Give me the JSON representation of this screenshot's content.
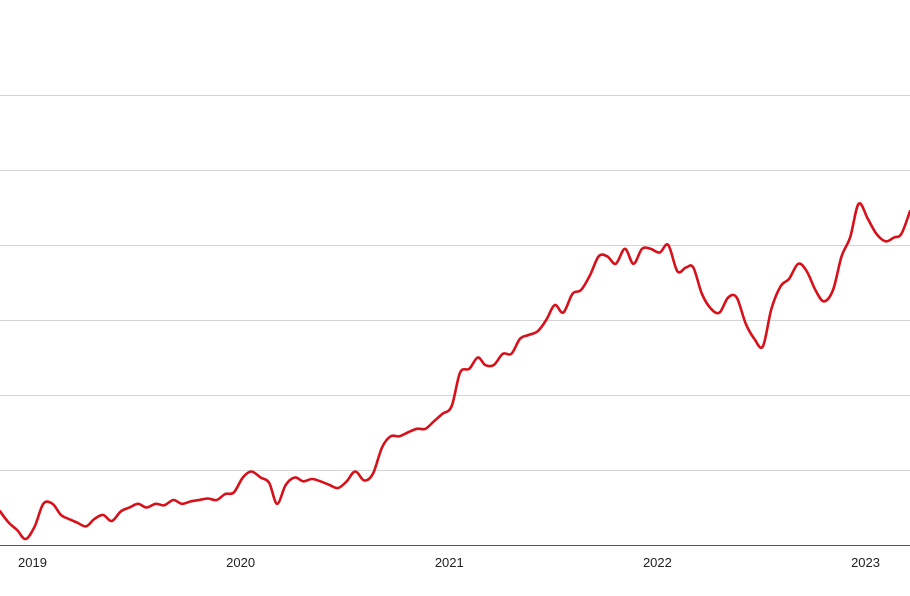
{
  "colors": {
    "line": "#d7101a",
    "grid": "#d4d4d4",
    "baseline": "#555555",
    "text": "#222222",
    "background": "#ffffff"
  },
  "chart_data": {
    "type": "line",
    "title": "",
    "xlabel": "",
    "ylabel": "",
    "x_tick_labels": [
      "2019",
      "2020",
      "2021",
      "2022",
      "2023"
    ],
    "x_ticks": [
      "2019-01-01",
      "2020-01-01",
      "2021-01-01",
      "2022-01-01",
      "2023-01-01"
    ],
    "xlim": [
      "2018-11-05",
      "2023-03-20"
    ],
    "ylim": [
      0,
      7
    ],
    "y_gridlines": [
      1,
      2,
      3,
      4,
      5,
      6
    ],
    "y_tick_labels_visible": false,
    "grid": "horizontal",
    "legend": "none",
    "series": [
      {
        "x": [
          "2018-11-05",
          "2018-11-20",
          "2018-12-05",
          "2018-12-20",
          "2019-01-05",
          "2019-01-20",
          "2019-02-05",
          "2019-02-20",
          "2019-03-05",
          "2019-03-20",
          "2019-04-05",
          "2019-04-20",
          "2019-05-05",
          "2019-05-20",
          "2019-06-05",
          "2019-06-20",
          "2019-07-05",
          "2019-07-20",
          "2019-08-05",
          "2019-08-20",
          "2019-09-05",
          "2019-09-20",
          "2019-10-05",
          "2019-10-20",
          "2019-11-05",
          "2019-11-20",
          "2019-12-05",
          "2019-12-20",
          "2020-01-05",
          "2020-01-20",
          "2020-02-05",
          "2020-02-20",
          "2020-03-05",
          "2020-03-20",
          "2020-04-05",
          "2020-04-20",
          "2020-05-05",
          "2020-05-20",
          "2020-06-05",
          "2020-06-20",
          "2020-07-05",
          "2020-07-20",
          "2020-08-05",
          "2020-08-20",
          "2020-09-05",
          "2020-09-20",
          "2020-10-05",
          "2020-10-20",
          "2020-11-05",
          "2020-11-20",
          "2020-12-05",
          "2020-12-20",
          "2021-01-05",
          "2021-01-20",
          "2021-02-05",
          "2021-02-20",
          "2021-03-05",
          "2021-03-20",
          "2021-04-05",
          "2021-04-20",
          "2021-05-05",
          "2021-05-20",
          "2021-06-05",
          "2021-06-20",
          "2021-07-05",
          "2021-07-20",
          "2021-08-05",
          "2021-08-20",
          "2021-09-05",
          "2021-09-20",
          "2021-10-05",
          "2021-10-20",
          "2021-11-05",
          "2021-11-20",
          "2021-12-05",
          "2021-12-20",
          "2022-01-05",
          "2022-01-20",
          "2022-02-05",
          "2022-02-20",
          "2022-03-05",
          "2022-03-20",
          "2022-04-05",
          "2022-04-20",
          "2022-05-05",
          "2022-05-20",
          "2022-06-05",
          "2022-06-20",
          "2022-07-05",
          "2022-07-20",
          "2022-08-05",
          "2022-08-20",
          "2022-09-05",
          "2022-09-20",
          "2022-10-05",
          "2022-10-20",
          "2022-11-05",
          "2022-11-20",
          "2022-12-05",
          "2022-12-20",
          "2023-01-05",
          "2023-01-20",
          "2023-02-05",
          "2023-02-20",
          "2023-03-05",
          "2023-03-20"
        ],
        "y": [
          0.45,
          0.3,
          0.2,
          0.08,
          0.25,
          0.55,
          0.55,
          0.4,
          0.35,
          0.3,
          0.25,
          0.35,
          0.4,
          0.32,
          0.45,
          0.5,
          0.55,
          0.5,
          0.55,
          0.53,
          0.6,
          0.55,
          0.58,
          0.6,
          0.62,
          0.6,
          0.68,
          0.7,
          0.9,
          0.98,
          0.9,
          0.83,
          0.55,
          0.8,
          0.9,
          0.85,
          0.88,
          0.85,
          0.8,
          0.76,
          0.85,
          0.98,
          0.86,
          0.95,
          1.3,
          1.45,
          1.45,
          1.5,
          1.55,
          1.55,
          1.65,
          1.75,
          1.85,
          2.3,
          2.35,
          2.5,
          2.4,
          2.4,
          2.55,
          2.55,
          2.75,
          2.8,
          2.85,
          3.0,
          3.2,
          3.1,
          3.35,
          3.4,
          3.6,
          3.85,
          3.85,
          3.75,
          3.95,
          3.75,
          3.95,
          3.95,
          3.9,
          4.0,
          3.65,
          3.7,
          3.7,
          3.35,
          3.15,
          3.1,
          3.3,
          3.3,
          2.95,
          2.75,
          2.65,
          3.15,
          3.45,
          3.55,
          3.75,
          3.65,
          3.4,
          3.25,
          3.4,
          3.85,
          4.1,
          4.55,
          4.35,
          4.15,
          4.05,
          4.1,
          4.15,
          4.45
        ]
      }
    ]
  }
}
